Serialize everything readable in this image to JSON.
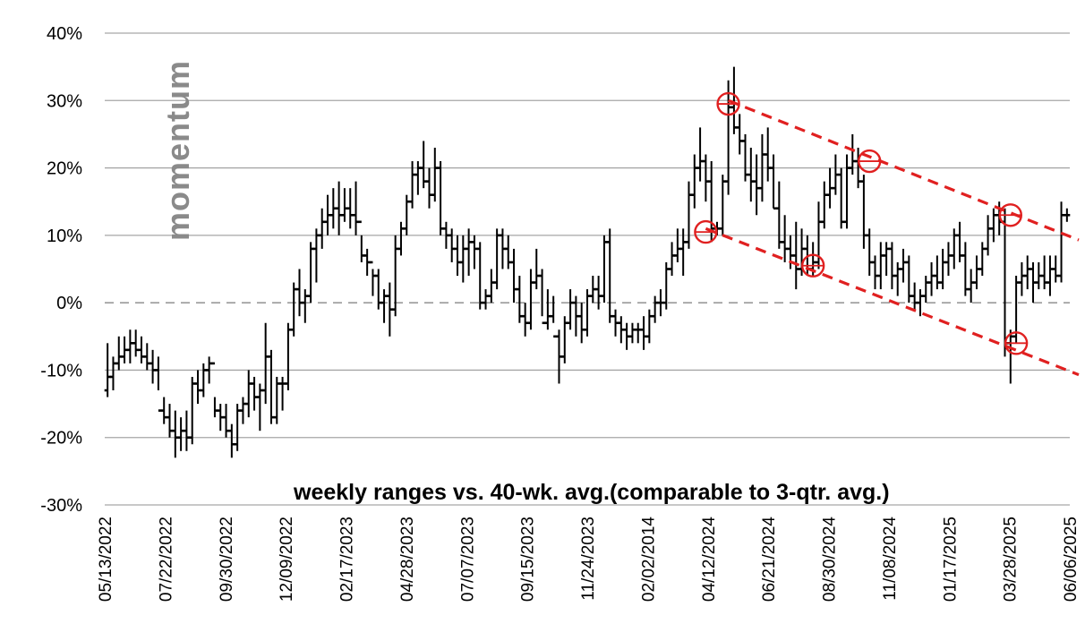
{
  "chart_data": {
    "type": "ohlc",
    "title": "",
    "subtitle": "weekly ranges vs. 40-wk. avg.(comparable to 3-qtr. avg.)",
    "side_label": "momentum",
    "xlabel": "",
    "ylabel": "",
    "y_unit": "%",
    "ylim": [
      -30,
      40
    ],
    "y_ticks": [
      {
        "value": 40,
        "label": "40%"
      },
      {
        "value": 30,
        "label": "30%"
      },
      {
        "value": 20,
        "label": "20%"
      },
      {
        "value": 10,
        "label": "10%"
      },
      {
        "value": 0,
        "label": "0%"
      },
      {
        "value": -10,
        "label": "-10%"
      },
      {
        "value": -20,
        "label": "-20%"
      },
      {
        "value": -30,
        "label": "-30%"
      }
    ],
    "x_ticks": [
      "05/13/2022",
      "07/22/2022",
      "09/30/2022",
      "12/09/2022",
      "02/17/2023",
      "04/28/2023",
      "07/07/2023",
      "09/15/2023",
      "11/24/2023",
      "02/02/2014",
      "04/12/2024",
      "06/21/2024",
      "08/30/2024",
      "11/08/2024",
      "01/17/2025",
      "03/28/2025",
      "06/06/2025"
    ],
    "grid": true,
    "zero_line": "dashed",
    "series_color": "#000000",
    "annotation_color": "#e02020",
    "series": [
      {
        "values": [
          [
            -13,
            -6,
            -14,
            -11
          ],
          [
            -11,
            -8,
            -13,
            -9
          ],
          [
            -9,
            -5,
            -10,
            -8
          ],
          [
            -8,
            -5,
            -9,
            -7
          ],
          [
            -7,
            -4,
            -9,
            -6
          ],
          [
            -6,
            -4,
            -8,
            -7
          ],
          [
            -7,
            -5,
            -9,
            -8
          ],
          [
            -8,
            -6,
            -10,
            -9
          ],
          [
            -9,
            -7,
            -12,
            -10
          ],
          [
            -10,
            -8,
            -13,
            -16
          ],
          [
            -16,
            -14,
            -18,
            -17
          ],
          [
            -17,
            -15,
            -20,
            -19
          ],
          [
            -19,
            -16,
            -23,
            -20
          ],
          [
            -20,
            -17,
            -22,
            -19
          ],
          [
            -19,
            -16,
            -22,
            -20
          ],
          [
            -20,
            -11,
            -21,
            -12
          ],
          [
            -12,
            -10,
            -15,
            -13
          ],
          [
            -13,
            -9,
            -14,
            -10
          ],
          [
            -10,
            -8,
            -12,
            -9
          ],
          [
            -9,
            -14,
            -17,
            -16
          ],
          [
            -16,
            -15,
            -19,
            -17
          ],
          [
            -17,
            -15,
            -20,
            -19
          ],
          [
            -19,
            -18,
            -23,
            -21
          ],
          [
            -21,
            -15,
            -22,
            -16
          ],
          [
            -16,
            -14,
            -18,
            -15
          ],
          [
            -15,
            -10,
            -17,
            -12
          ],
          [
            -12,
            -11,
            -16,
            -14
          ],
          [
            -14,
            -12,
            -19,
            -13
          ],
          [
            -13,
            -3,
            -15,
            -8
          ],
          [
            -8,
            -7,
            -18,
            -17
          ],
          [
            -17,
            -11,
            -18,
            -12
          ],
          [
            -12,
            -11,
            -16,
            -12
          ],
          [
            -12,
            -3,
            -13,
            -4
          ],
          [
            -4,
            3,
            -5,
            2
          ],
          [
            2,
            5,
            -2,
            0
          ],
          [
            0,
            2,
            -3,
            1
          ],
          [
            1,
            9,
            0,
            8
          ],
          [
            8,
            11,
            3,
            10
          ],
          [
            10,
            14,
            8,
            12
          ],
          [
            12,
            16,
            10,
            13
          ],
          [
            13,
            17,
            11,
            14
          ],
          [
            14,
            18,
            10,
            13
          ],
          [
            13,
            17,
            12,
            14
          ],
          [
            14,
            17,
            11,
            13
          ],
          [
            13,
            18,
            10,
            12
          ],
          [
            12,
            10,
            6,
            7
          ],
          [
            7,
            8,
            4,
            6
          ],
          [
            6,
            5,
            1,
            4
          ],
          [
            4,
            5,
            -1,
            0
          ],
          [
            0,
            2,
            -3,
            1
          ],
          [
            1,
            3,
            -5,
            -1
          ],
          [
            -1,
            10,
            -2,
            8
          ],
          [
            8,
            12,
            7,
            11
          ],
          [
            11,
            16,
            10,
            15
          ],
          [
            15,
            21,
            14,
            19
          ],
          [
            19,
            21,
            16,
            20
          ],
          [
            20,
            24,
            17,
            18
          ],
          [
            18,
            20,
            14,
            16
          ],
          [
            16,
            23,
            15,
            20
          ],
          [
            20,
            21,
            10,
            11
          ],
          [
            11,
            12,
            8,
            10
          ],
          [
            10,
            11,
            6,
            8
          ],
          [
            8,
            10,
            4,
            6
          ],
          [
            6,
            10,
            3,
            8
          ],
          [
            8,
            11,
            4,
            9
          ],
          [
            9,
            10,
            5,
            8
          ],
          [
            8,
            9,
            -1,
            0
          ],
          [
            0,
            2,
            -1,
            1
          ],
          [
            1,
            5,
            0,
            3
          ],
          [
            3,
            11,
            2,
            10
          ],
          [
            10,
            11,
            5,
            8
          ],
          [
            8,
            10,
            5,
            6
          ],
          [
            6,
            8,
            0,
            2
          ],
          [
            2,
            4,
            -3,
            -2
          ],
          [
            -2,
            0,
            -5,
            -3
          ],
          [
            -3,
            5,
            -4,
            3
          ],
          [
            3,
            8,
            2,
            4
          ],
          [
            4,
            5,
            -2,
            -3
          ],
          [
            -3,
            2,
            -4,
            -2
          ],
          [
            -2,
            1,
            -3,
            -5
          ],
          [
            -5,
            -4,
            -12,
            -8
          ],
          [
            -8,
            -2,
            -9,
            -3
          ],
          [
            -3,
            2,
            -4,
            0
          ],
          [
            0,
            1,
            -5,
            -2
          ],
          [
            -2,
            0,
            -6,
            -4
          ],
          [
            -4,
            2,
            -5,
            1
          ],
          [
            1,
            4,
            0,
            2
          ],
          [
            2,
            4,
            -1,
            1
          ],
          [
            1,
            10,
            0,
            9
          ],
          [
            9,
            11,
            -3,
            -2
          ],
          [
            -2,
            -1,
            -5,
            -3
          ],
          [
            -3,
            -2,
            -6,
            -4
          ],
          [
            -4,
            -3,
            -7,
            -5
          ],
          [
            -5,
            -3,
            -6,
            -4
          ],
          [
            -4,
            -3,
            -6,
            -4
          ],
          [
            -4,
            -2,
            -7,
            -5
          ],
          [
            -5,
            -1,
            -6,
            -2
          ],
          [
            -2,
            1,
            -3,
            0
          ],
          [
            0,
            2,
            -2,
            0
          ],
          [
            0,
            6,
            -1,
            5
          ],
          [
            5,
            9,
            4,
            7
          ],
          [
            7,
            11,
            6,
            8
          ],
          [
            8,
            11,
            4,
            9
          ],
          [
            9,
            18,
            8,
            16
          ],
          [
            16,
            22,
            14,
            20
          ],
          [
            20,
            26,
            18,
            21
          ],
          [
            21,
            22,
            15,
            18
          ],
          [
            18,
            21,
            9,
            11
          ],
          [
            11,
            12,
            10,
            11
          ],
          [
            11,
            19,
            10,
            18
          ],
          [
            18,
            33,
            16,
            29
          ],
          [
            29,
            35,
            25,
            26
          ],
          [
            26,
            28,
            22,
            24
          ],
          [
            24,
            25,
            18,
            19
          ],
          [
            19,
            23,
            15,
            18
          ],
          [
            18,
            22,
            13,
            17
          ],
          [
            17,
            25,
            15,
            22
          ],
          [
            22,
            26,
            18,
            20
          ],
          [
            20,
            22,
            14,
            14
          ],
          [
            14,
            18,
            8,
            9
          ],
          [
            9,
            13,
            6,
            8
          ],
          [
            8,
            10,
            5,
            7
          ],
          [
            7,
            12,
            2,
            5
          ],
          [
            5,
            11,
            4,
            8
          ],
          [
            8,
            10,
            4,
            5
          ],
          [
            5,
            9,
            4,
            6
          ],
          [
            6,
            15,
            5,
            12
          ],
          [
            12,
            18,
            11,
            16
          ],
          [
            16,
            20,
            14,
            17
          ],
          [
            17,
            22,
            16,
            19
          ],
          [
            19,
            20,
            11,
            12
          ],
          [
            12,
            22,
            11,
            20
          ],
          [
            20,
            25,
            19,
            21
          ],
          [
            21,
            23,
            17,
            18
          ],
          [
            18,
            19,
            8,
            10
          ],
          [
            10,
            11,
            4,
            6
          ],
          [
            6,
            7,
            2,
            4
          ],
          [
            4,
            9,
            2,
            7
          ],
          [
            7,
            9,
            4,
            8
          ],
          [
            8,
            9,
            2,
            4
          ],
          [
            4,
            6,
            1,
            5
          ],
          [
            5,
            8,
            3,
            6
          ],
          [
            6,
            7,
            0,
            1
          ],
          [
            1,
            3,
            -1,
            0
          ],
          [
            0,
            2,
            -2,
            1
          ],
          [
            1,
            4,
            0,
            3
          ],
          [
            3,
            6,
            1,
            4
          ],
          [
            4,
            7,
            2,
            3
          ],
          [
            3,
            8,
            2,
            6
          ],
          [
            6,
            9,
            4,
            7
          ],
          [
            7,
            11,
            5,
            10
          ],
          [
            10,
            12,
            6,
            7
          ],
          [
            7,
            9,
            1,
            2
          ],
          [
            2,
            5,
            0,
            3
          ],
          [
            3,
            7,
            2,
            5
          ],
          [
            5,
            9,
            4,
            8
          ],
          [
            8,
            13,
            7,
            11
          ],
          [
            11,
            14,
            9,
            13
          ],
          [
            13,
            15,
            10,
            12
          ],
          [
            12,
            14,
            -8,
            -6
          ],
          [
            -6,
            -4,
            -12,
            -5
          ],
          [
            -5,
            4,
            -6,
            3
          ],
          [
            3,
            6,
            1,
            4
          ],
          [
            4,
            7,
            2,
            5
          ],
          [
            5,
            6,
            0,
            3
          ],
          [
            3,
            6,
            2,
            4
          ],
          [
            4,
            7,
            2,
            3
          ],
          [
            3,
            7,
            1,
            5
          ],
          [
            5,
            7,
            3,
            4
          ],
          [
            4,
            15,
            3,
            13
          ],
          [
            13,
            14,
            12,
            13
          ]
        ]
      }
    ],
    "ohlc_order": [
      "open",
      "high",
      "low",
      "close"
    ],
    "trend_lines": [
      {
        "style": "dashed",
        "from_bar": 110,
        "from": 30,
        "to_bar": 170,
        "to": 10
      },
      {
        "style": "dashed",
        "from_bar": 106,
        "from": 11,
        "to_bar": 170,
        "to": -10
      }
    ],
    "circled_points": [
      {
        "bar": 110,
        "value": 29.5
      },
      {
        "bar": 106,
        "value": 10.5
      },
      {
        "bar": 125,
        "value": 5.5
      },
      {
        "bar": 135,
        "value": 21
      },
      {
        "bar": 160,
        "value": 13
      },
      {
        "bar": 161,
        "value": -6
      }
    ]
  }
}
